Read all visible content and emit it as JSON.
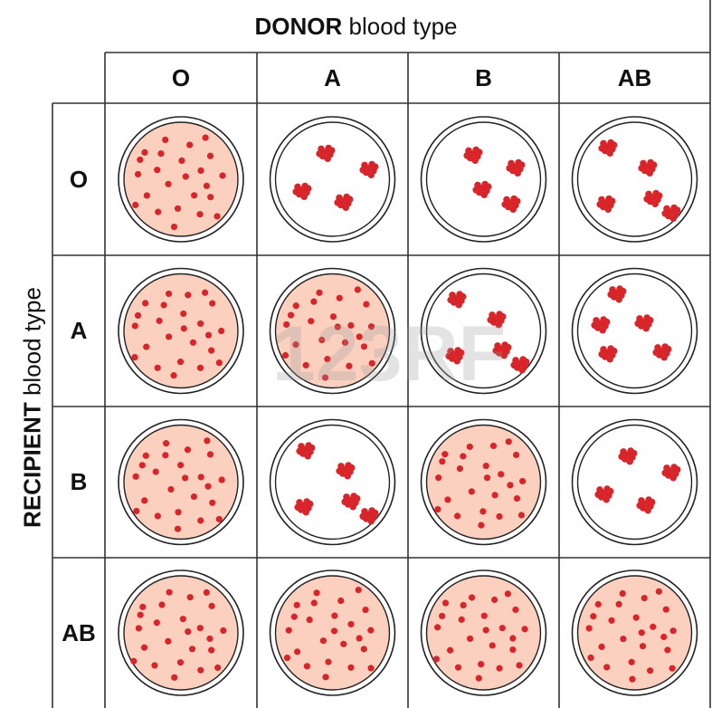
{
  "header": {
    "donor_strong": "DONOR",
    "donor_rest": " blood type"
  },
  "side": {
    "recipient_strong": "RECIPIENT",
    "recipient_rest": " blood type"
  },
  "columns": [
    "O",
    "A",
    "B",
    "AB"
  ],
  "rows": [
    "O",
    "A",
    "B",
    "AB"
  ],
  "compatibility": [
    [
      "compatible",
      "agglutinated",
      "agglutinated",
      "agglutinated"
    ],
    [
      "compatible",
      "compatible",
      "agglutinated",
      "agglutinated"
    ],
    [
      "compatible",
      "agglutinated",
      "compatible",
      "agglutinated"
    ],
    [
      "compatible",
      "compatible",
      "compatible",
      "compatible"
    ]
  ],
  "watermark": "123RF",
  "colors": {
    "dish_fill": "#fbd0bf",
    "cell_red": "#d8252a",
    "grid_line": "#333333"
  }
}
